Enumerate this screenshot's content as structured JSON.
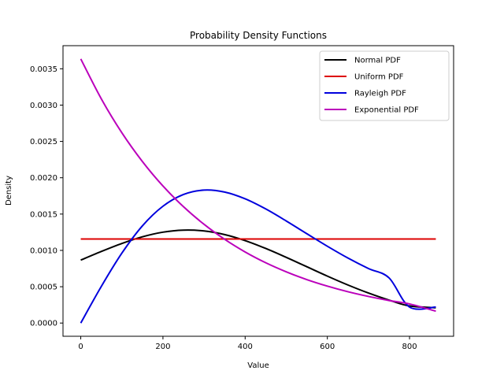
{
  "chart_data": {
    "type": "line",
    "title": "Probability Density Functions",
    "xlabel": "Value",
    "ylabel": "Density",
    "xlim": [
      -43.2,
      907.2
    ],
    "ylim": [
      -0.000182,
      0.003818
    ],
    "xticks": [
      0,
      200,
      400,
      600,
      800
    ],
    "xtick_labels": [
      "0",
      "200",
      "400",
      "600",
      "800"
    ],
    "yticks": [
      0.0,
      0.0005,
      0.001,
      0.0015,
      0.002,
      0.0025,
      0.003,
      0.0035
    ],
    "ytick_labels": [
      "0.0000",
      "0.0005",
      "0.0010",
      "0.0015",
      "0.0020",
      "0.0025",
      "0.0030",
      "0.0035"
    ],
    "grid": false,
    "legend_position": "top-right",
    "x": [
      0,
      50,
      100,
      150,
      200,
      250,
      300,
      350,
      400,
      450,
      500,
      550,
      600,
      650,
      700,
      750,
      800,
      864
    ],
    "series": [
      {
        "name": "Normal PDF",
        "color": "#000000",
        "values": [
          0.000866,
          0.000985,
          0.001095,
          0.001187,
          0.001251,
          0.001279,
          0.001268,
          0.001218,
          0.001135,
          0.001027,
          0.000904,
          0.000775,
          0.000646,
          0.000524,
          0.000413,
          0.000316,
          0.000235,
          0.000211
        ]
      },
      {
        "name": "Uniform PDF",
        "color": "#dd0000",
        "values": [
          0.001157,
          0.001157,
          0.001157,
          0.001157,
          0.001157,
          0.001157,
          0.001157,
          0.001157,
          0.001157,
          0.001157,
          0.001157,
          0.001157,
          0.001157,
          0.001157,
          0.001157,
          0.001157,
          0.001157,
          0.001157
        ]
      },
      {
        "name": "Rayleigh PDF",
        "color": "#0000dd",
        "values": [
          0.0,
          0.000504,
          0.000962,
          0.001338,
          0.001608,
          0.00177,
          0.00183,
          0.001803,
          0.00171,
          0.001571,
          0.001405,
          0.00123,
          0.001057,
          0.000895,
          0.00075,
          0.000622,
          0.00022,
          0.00022
        ]
      },
      {
        "name": "Exponential PDF",
        "color": "#bb00bb",
        "values": [
          0.003636,
          0.003086,
          0.002619,
          0.002223,
          0.001886,
          0.001601,
          0.001359,
          0.001153,
          0.000978,
          0.00083,
          0.000705,
          0.000598,
          0.000508,
          0.000431,
          0.000366,
          0.00031,
          0.000263,
          0.000163
        ]
      }
    ]
  }
}
